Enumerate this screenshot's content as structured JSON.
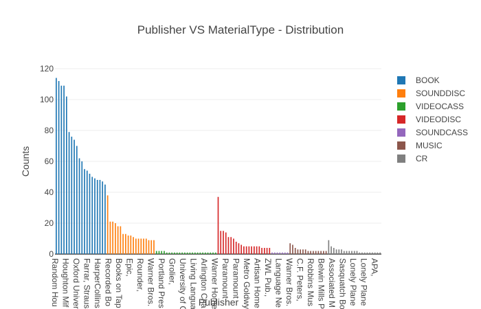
{
  "chart_data": {
    "type": "bar",
    "title": "Publisher VS MaterialType - Distribution",
    "xlabel": "Publisher",
    "ylabel": "Counts",
    "ylim": [
      0,
      120
    ],
    "yticks": [
      0,
      20,
      40,
      60,
      80,
      100,
      120
    ],
    "grid": true,
    "legend_position": "right",
    "xtick_labels": [
      "Random Hou",
      "Houghton Mif",
      "Oxford Univer",
      "Farrar, Straus",
      "HarperCollins",
      "Recorded Bo",
      "Books on Tap",
      "Epic,",
      "Rounder,",
      "Warner Bros.",
      "Portland Pres",
      "Grolier,",
      "University of C",
      "Living Langua",
      "Arlington Cha",
      "Warner Home",
      "Paramount",
      "Paramount",
      "Metro Goldwy",
      "Artisan Home",
      "ZWL Pub.,",
      "Language Ne",
      "Warner Bros.",
      "C.F. Peters,",
      "Robbins Mus",
      "Belwin Mills P",
      "Associated M",
      "Sasquatch Bo",
      "Lonely Plane",
      "Lonely Plane",
      "APA,"
    ],
    "series": [
      {
        "name": "BOOK",
        "color": "#1f77b4",
        "values": [
          114,
          112,
          109,
          109,
          102,
          79,
          76,
          74,
          70,
          62,
          60,
          55,
          54,
          52,
          50,
          49,
          48,
          48,
          47,
          45
        ]
      },
      {
        "name": "SOUNDDISC",
        "color": "#ff7f0e",
        "values": [
          38,
          21,
          21,
          20,
          18,
          18,
          13,
          13,
          12,
          12,
          11,
          10,
          10,
          10,
          10,
          10,
          9,
          9,
          9
        ]
      },
      {
        "name": "VIDEOCASS",
        "color": "#2ca02c",
        "values": [
          2,
          2,
          2,
          2,
          1,
          1,
          1,
          1,
          1,
          1,
          1,
          1,
          1,
          1,
          1,
          1,
          1,
          1,
          1,
          1,
          1,
          1,
          1,
          1
        ]
      },
      {
        "name": "VIDEODISC",
        "color": "#d62728",
        "values": [
          37,
          15,
          15,
          14,
          11,
          11,
          10,
          8,
          7,
          6,
          5,
          5,
          5,
          5,
          5,
          5,
          5,
          4,
          4,
          4,
          4
        ]
      },
      {
        "name": "SOUNDCASS",
        "color": "#9467bd",
        "values": [
          1,
          1,
          1,
          1,
          1,
          1,
          1
        ]
      },
      {
        "name": "MUSIC",
        "color": "#8c564b",
        "values": [
          7,
          6,
          4,
          3,
          3,
          3,
          3,
          2,
          2,
          2,
          2,
          2,
          2,
          2,
          2
        ]
      },
      {
        "name": "CR",
        "color": "#7f7f7f",
        "values": [
          9,
          5,
          4,
          3,
          3,
          3,
          2,
          2,
          2,
          2,
          2,
          2,
          1,
          1,
          1,
          1,
          1,
          1,
          1,
          1,
          1
        ]
      }
    ]
  }
}
